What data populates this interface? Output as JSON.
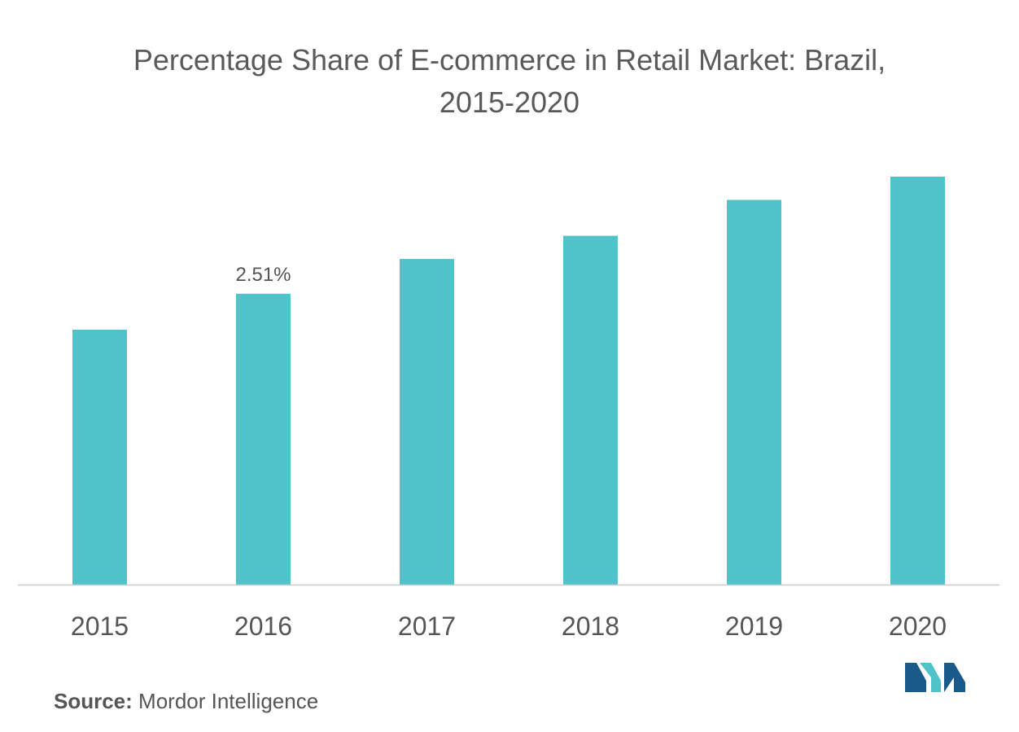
{
  "chart_data": {
    "type": "bar",
    "title": [
      "Percentage Share of E-commerce in Retail Market: Brazil,",
      "2015-2020"
    ],
    "categories": [
      "2015",
      "2016",
      "2017",
      "2018",
      "2019",
      "2020"
    ],
    "values": [
      2.2,
      2.51,
      2.81,
      3.01,
      3.32,
      3.52
    ],
    "data_labels": [
      null,
      "2.51%",
      null,
      null,
      null,
      null
    ],
    "ylim": [
      0,
      3.52
    ],
    "grid": false,
    "bar_color": "#4fc3c9",
    "axis_color": "#cccccc"
  },
  "source": {
    "label": "Source:",
    "text": "Mordor Intelligence"
  },
  "logo": {
    "name": "mordor-intelligence-logo",
    "colors": [
      "#1a5a8a",
      "#4fc3c9"
    ]
  }
}
